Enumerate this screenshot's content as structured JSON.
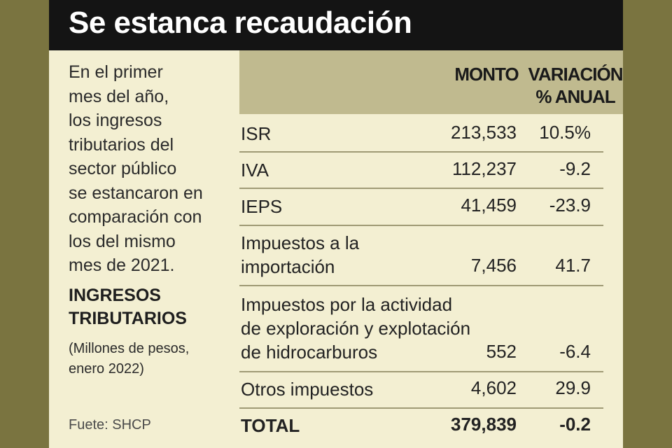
{
  "title": "Se estanca recaudación",
  "intro": [
    "En el primer",
    "mes del año,",
    "los ingresos",
    "tributarios del",
    "sector público",
    "se estancaron en",
    "comparación con",
    "los del mismo",
    "mes de 2021."
  ],
  "section": {
    "title_lines": [
      "INGRESOS",
      "TRIBUTARIOS"
    ],
    "subtitle_lines": [
      "(Millones de pesos,",
      "enero 2022)"
    ]
  },
  "source": "Fuete: SHCP",
  "table": {
    "headers": {
      "monto": "MONTO",
      "variacion_lines": [
        "VARIACIÓN",
        "% ANUAL"
      ]
    },
    "rows": [
      {
        "label_lines": [
          "ISR"
        ],
        "monto": "213,533",
        "variacion": "10.5%"
      },
      {
        "label_lines": [
          "IVA"
        ],
        "monto": "112,237",
        "variacion": "-9.2"
      },
      {
        "label_lines": [
          "IEPS"
        ],
        "monto": "41,459",
        "variacion": "-23.9"
      },
      {
        "label_lines": [
          "Impuestos a la",
          "importación"
        ],
        "monto": "7,456",
        "variacion": "41.7"
      },
      {
        "label_lines": [
          "Impuestos por la actividad",
          "de exploración y explotación",
          "de hidrocarburos"
        ],
        "monto": "552",
        "variacion": "-6.4"
      },
      {
        "label_lines": [
          "Otros impuestos"
        ],
        "monto": "4,602",
        "variacion": "29.9"
      }
    ],
    "total": {
      "label": "TOTAL",
      "monto": "379,839",
      "variacion": "-0.2"
    }
  },
  "colors": {
    "header_bg": "#141414",
    "card_bg": "#f3efd2",
    "table_head_bg": "#c0ba8f",
    "outer_bg": "#7a7440"
  }
}
